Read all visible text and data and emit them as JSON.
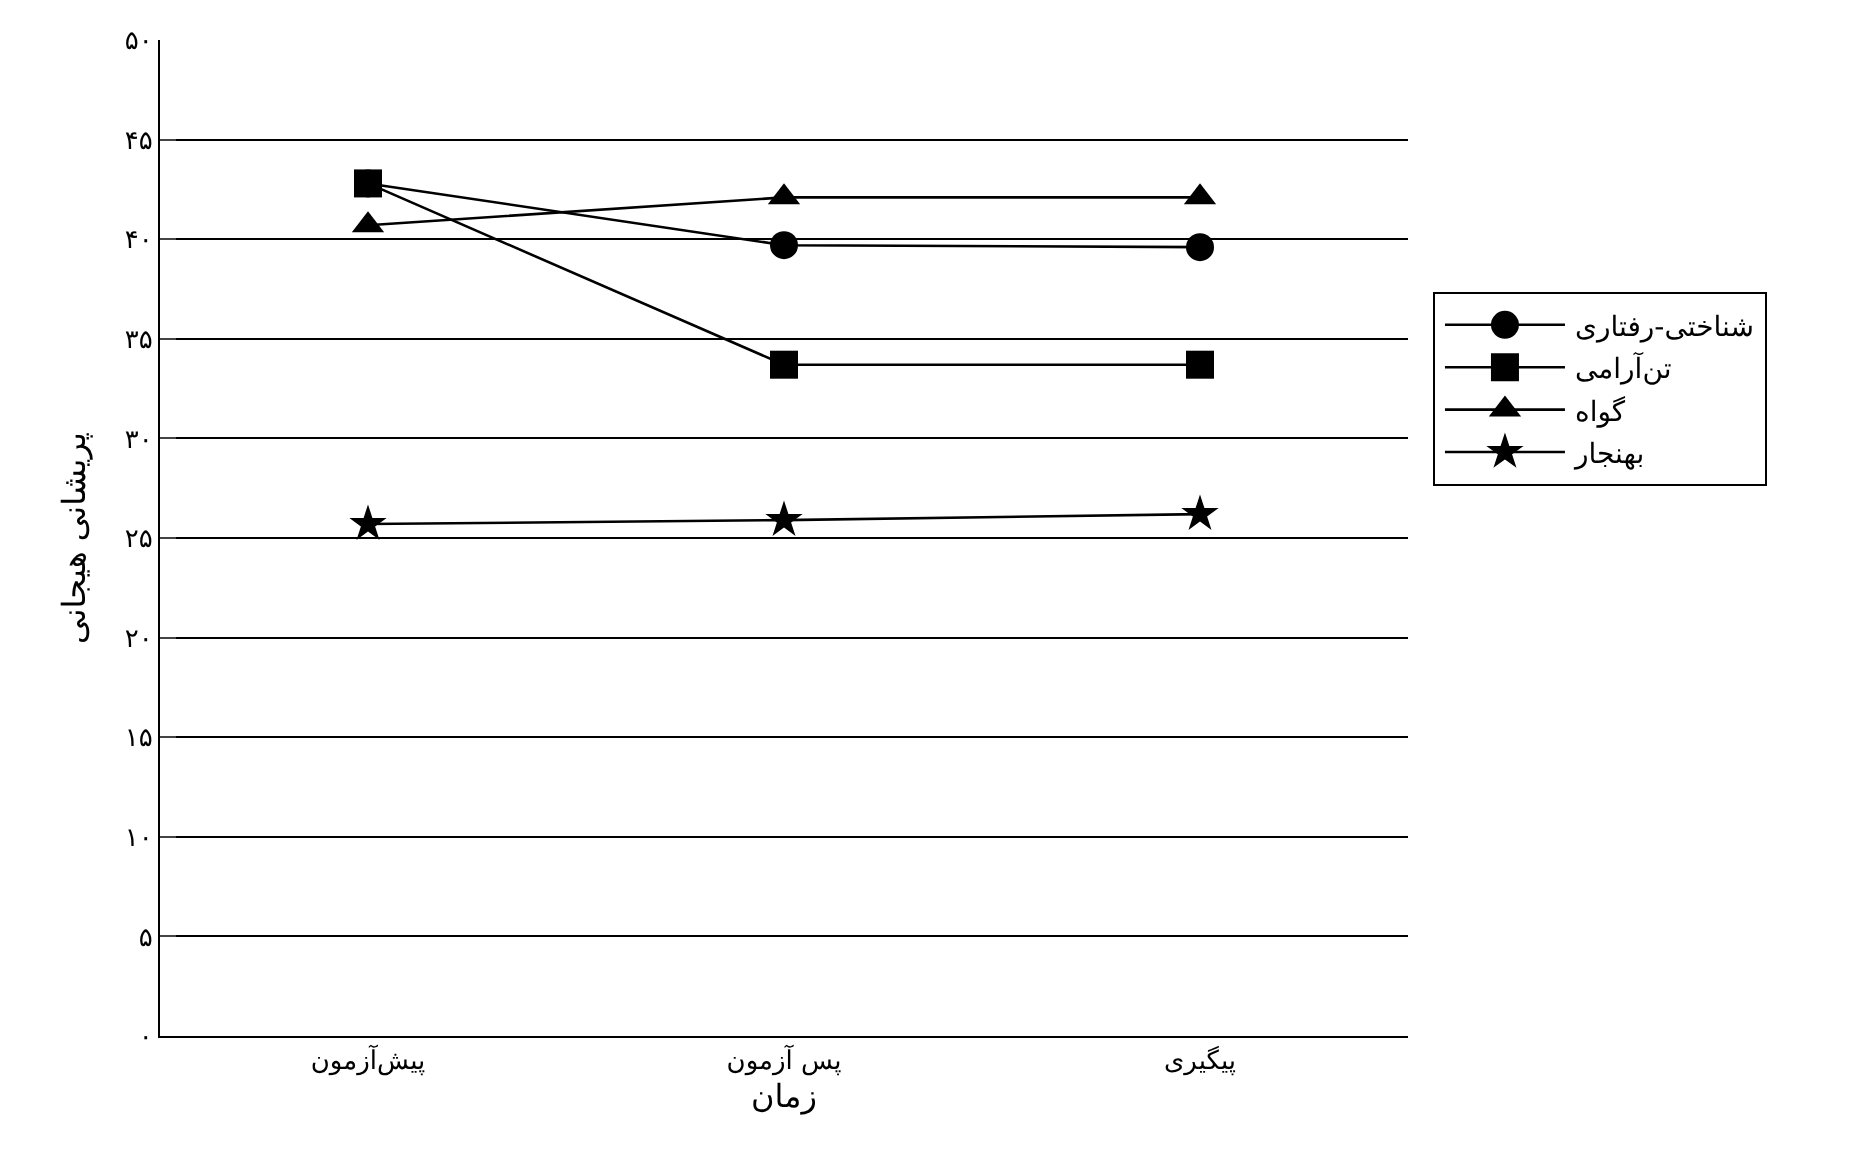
{
  "chart_data": {
    "type": "line",
    "xlabel": "زمان",
    "ylabel": "پریشانی هیجانی",
    "categories": [
      "پیش‌آزمون",
      "پس آزمون",
      "پیگیری"
    ],
    "series": [
      {
        "name": "شناختی-رفتاری",
        "color": "#000000",
        "marker": "circle",
        "values": [
          42.8,
          39.7,
          39.6
        ]
      },
      {
        "name": "تن‌آرامی",
        "color": "#000000",
        "marker": "square",
        "values": [
          42.8,
          33.7,
          33.7
        ]
      },
      {
        "name": "گواه",
        "color": "#000000",
        "marker": "triangle",
        "values": [
          40.7,
          42.1,
          42.1
        ]
      },
      {
        "name": "بهنجار",
        "color": "#000000",
        "marker": "star",
        "values": [
          25.7,
          25.9,
          26.2
        ]
      }
    ],
    "ylim": [
      0,
      50
    ],
    "yticks": [
      {
        "value": 0,
        "label": "۰"
      },
      {
        "value": 5,
        "label": "۵"
      },
      {
        "value": 10,
        "label": "۱۰"
      },
      {
        "value": 15,
        "label": "۱۵"
      },
      {
        "value": 20,
        "label": "۲۰"
      },
      {
        "value": 25,
        "label": "۲۵"
      },
      {
        "value": 30,
        "label": "۳۰"
      },
      {
        "value": 35,
        "label": "۳۵"
      },
      {
        "value": 40,
        "label": "۴۰"
      },
      {
        "value": 45,
        "label": "۴۵"
      },
      {
        "value": 50,
        "label": "۵۰"
      }
    ],
    "grid": "y",
    "legend": "right",
    "line_style": "solid"
  }
}
